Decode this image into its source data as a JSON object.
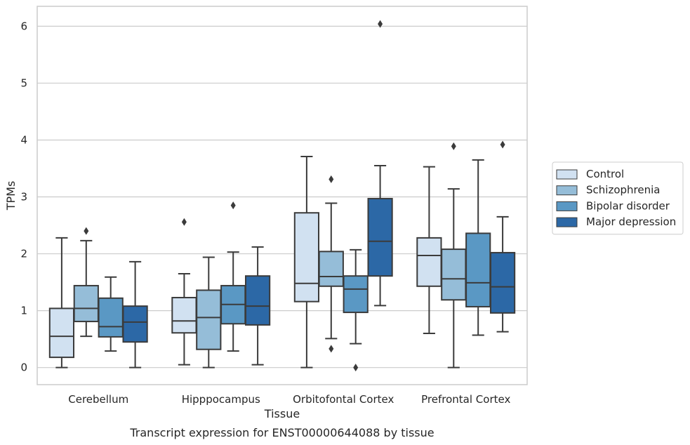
{
  "chart_data": {
    "type": "box",
    "xlabel": "Tissue",
    "ylabel": "TPMs",
    "caption": "Transcript expression for ENST00000644088 by tissue",
    "ylim": [
      -0.3,
      6.35
    ],
    "yticks": [
      0,
      1,
      2,
      3,
      4,
      5,
      6
    ],
    "grid": "horizontal",
    "legend_position": "right",
    "categories": [
      "Cerebellum",
      "Hipppocampus",
      "Orbitofontal Cortex",
      "Prefrontal Cortex"
    ],
    "series": [
      {
        "name": "Control",
        "color": "#d1e1f1",
        "boxes": [
          {
            "whisker_low": 0.0,
            "q1": 0.18,
            "median": 0.55,
            "q3": 1.04,
            "whisker_high": 2.28,
            "outliers": []
          },
          {
            "whisker_low": 0.05,
            "q1": 0.61,
            "median": 0.82,
            "q3": 1.23,
            "whisker_high": 1.65,
            "outliers": [
              2.56
            ]
          },
          {
            "whisker_low": 0.0,
            "q1": 1.16,
            "median": 1.48,
            "q3": 2.72,
            "whisker_high": 3.71,
            "outliers": []
          },
          {
            "whisker_low": 0.6,
            "q1": 1.43,
            "median": 1.97,
            "q3": 2.28,
            "whisker_high": 3.53,
            "outliers": []
          }
        ]
      },
      {
        "name": "Schizophrenia",
        "color": "#95bdd8",
        "boxes": [
          {
            "whisker_low": 0.55,
            "q1": 0.81,
            "median": 1.04,
            "q3": 1.44,
            "whisker_high": 2.23,
            "outliers": [
              2.4
            ]
          },
          {
            "whisker_low": 0.0,
            "q1": 0.32,
            "median": 0.88,
            "q3": 1.36,
            "whisker_high": 1.94,
            "outliers": []
          },
          {
            "whisker_low": 0.51,
            "q1": 1.43,
            "median": 1.6,
            "q3": 2.04,
            "whisker_high": 2.89,
            "outliers": [
              3.31,
              0.33
            ]
          },
          {
            "whisker_low": 0.0,
            "q1": 1.19,
            "median": 1.56,
            "q3": 2.08,
            "whisker_high": 3.14,
            "outliers": [
              3.89
            ]
          }
        ]
      },
      {
        "name": "Bipolar disorder",
        "color": "#5a98c4",
        "boxes": [
          {
            "whisker_low": 0.29,
            "q1": 0.54,
            "median": 0.72,
            "q3": 1.22,
            "whisker_high": 1.59,
            "outliers": []
          },
          {
            "whisker_low": 0.29,
            "q1": 0.77,
            "median": 1.11,
            "q3": 1.44,
            "whisker_high": 2.03,
            "outliers": [
              2.85
            ]
          },
          {
            "whisker_low": 0.42,
            "q1": 0.97,
            "median": 1.38,
            "q3": 1.61,
            "whisker_high": 2.07,
            "outliers": [
              0.0
            ]
          },
          {
            "whisker_low": 0.57,
            "q1": 1.07,
            "median": 1.49,
            "q3": 2.36,
            "whisker_high": 3.65,
            "outliers": []
          }
        ]
      },
      {
        "name": "Major depression",
        "color": "#2c68a6",
        "boxes": [
          {
            "whisker_low": 0.0,
            "q1": 0.45,
            "median": 0.8,
            "q3": 1.08,
            "whisker_high": 1.86,
            "outliers": []
          },
          {
            "whisker_low": 0.05,
            "q1": 0.75,
            "median": 1.08,
            "q3": 1.61,
            "whisker_high": 2.12,
            "outliers": []
          },
          {
            "whisker_low": 1.09,
            "q1": 1.61,
            "median": 2.22,
            "q3": 2.97,
            "whisker_high": 3.55,
            "outliers": [
              6.04
            ]
          },
          {
            "whisker_low": 0.63,
            "q1": 0.96,
            "median": 1.42,
            "q3": 2.02,
            "whisker_high": 2.65,
            "outliers": [
              3.92
            ]
          }
        ]
      }
    ]
  }
}
